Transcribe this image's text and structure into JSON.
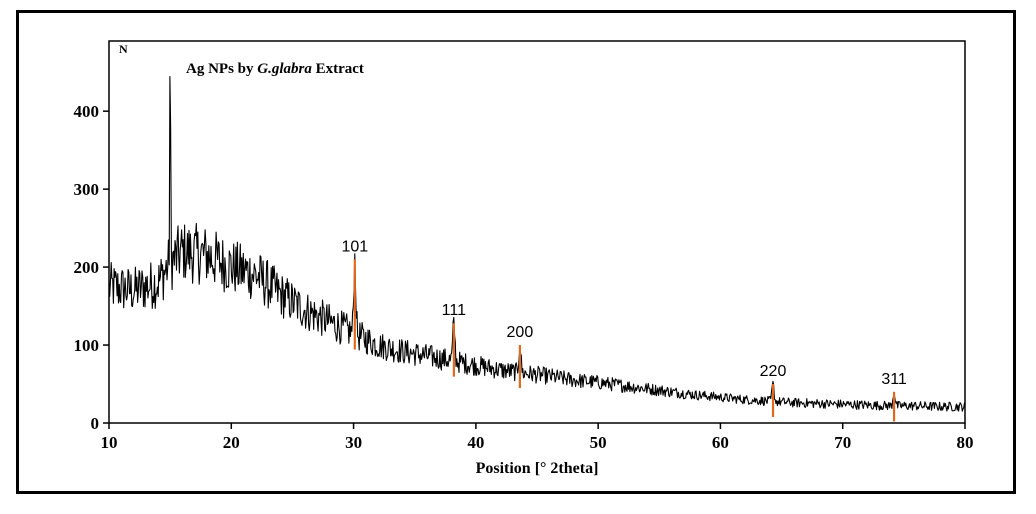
{
  "chart_data": {
    "type": "line",
    "title_prefix": "Ag NPs by ",
    "title_italic": "G.glabra",
    "title_suffix": " Extract",
    "xlabel": "Position [° 2theta]",
    "ylabel": "N",
    "xlim": [
      10,
      80
    ],
    "ylim": [
      0,
      490
    ],
    "xticks": [
      10,
      20,
      30,
      40,
      50,
      60,
      70,
      80
    ],
    "yticks": [
      0,
      100,
      200,
      300,
      400
    ],
    "line_color": "#000000",
    "marker_color": "#e06a1a",
    "envelope": {
      "x": [
        10,
        12,
        14,
        15,
        16,
        18,
        20,
        22,
        24,
        26,
        28,
        30,
        32,
        34,
        36,
        38,
        40,
        42,
        44,
        46,
        48,
        50,
        52,
        54,
        56,
        58,
        60,
        62,
        64,
        66,
        68,
        70,
        72,
        74,
        76,
        78,
        80
      ],
      "y": [
        175,
        170,
        180,
        205,
        220,
        215,
        200,
        190,
        165,
        145,
        130,
        115,
        100,
        92,
        86,
        80,
        74,
        68,
        64,
        60,
        55,
        52,
        48,
        44,
        40,
        36,
        33,
        30,
        28,
        26,
        25,
        24,
        23,
        22,
        22,
        21,
        21
      ]
    },
    "sharp_peak": {
      "x": 15.0,
      "y": 485
    },
    "peaks": [
      {
        "label": "101",
        "x": 30.1,
        "y": 210
      },
      {
        "label": "111",
        "x": 38.2,
        "y": 128
      },
      {
        "label": "200",
        "x": 43.6,
        "y": 100
      },
      {
        "label": "220",
        "x": 64.3,
        "y": 50
      },
      {
        "label": "311",
        "x": 74.2,
        "y": 40
      }
    ]
  }
}
